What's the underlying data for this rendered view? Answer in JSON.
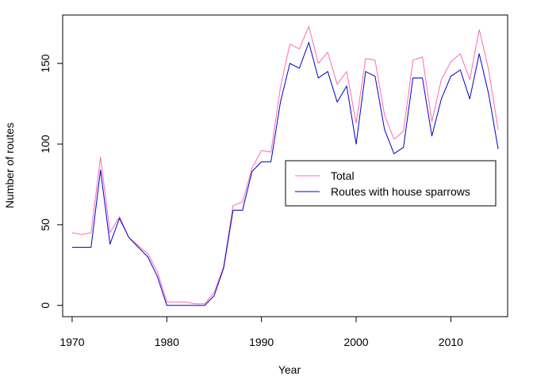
{
  "chart_data": {
    "type": "line",
    "title": "",
    "xlabel": "Year",
    "ylabel": "Number of routes",
    "xlim": [
      1969,
      2016
    ],
    "ylim": [
      -7,
      180
    ],
    "xticks": [
      1970,
      1980,
      1990,
      2000,
      2010
    ],
    "yticks": [
      0,
      50,
      100,
      150
    ],
    "grid": false,
    "legend_position": "center-right",
    "x": [
      1970,
      1971,
      1972,
      1973,
      1974,
      1975,
      1976,
      1977,
      1978,
      1979,
      1980,
      1981,
      1982,
      1983,
      1984,
      1985,
      1986,
      1987,
      1988,
      1989,
      1990,
      1991,
      1992,
      1993,
      1994,
      1995,
      1996,
      1997,
      1998,
      1999,
      2000,
      2001,
      2002,
      2003,
      2004,
      2005,
      2006,
      2007,
      2008,
      2009,
      2010,
      2011,
      2012,
      2013,
      2014,
      2015
    ],
    "series": [
      {
        "name": "Total",
        "color": "#ff69b4",
        "values": [
          45,
          44,
          45,
          92,
          45,
          55,
          42,
          37,
          32,
          21,
          2,
          2,
          2,
          1,
          1,
          8,
          24,
          62,
          64,
          85,
          96,
          95,
          135,
          162,
          159,
          173,
          150,
          157,
          137,
          145,
          113,
          153,
          152,
          118,
          103,
          108,
          152,
          154,
          114,
          140,
          151,
          156,
          140,
          171,
          146,
          109
        ]
      },
      {
        "name": "Routes with house sparrows",
        "color": "#0000cd",
        "values": [
          36,
          36,
          36,
          84,
          38,
          54,
          42,
          36,
          30,
          18,
          0,
          0,
          0,
          0,
          0,
          6,
          23,
          59,
          59,
          83,
          89,
          89,
          126,
          150,
          147,
          163,
          141,
          145,
          126,
          136,
          100,
          145,
          142,
          109,
          94,
          98,
          141,
          141,
          105,
          128,
          142,
          146,
          128,
          156,
          131,
          97
        ]
      }
    ]
  }
}
